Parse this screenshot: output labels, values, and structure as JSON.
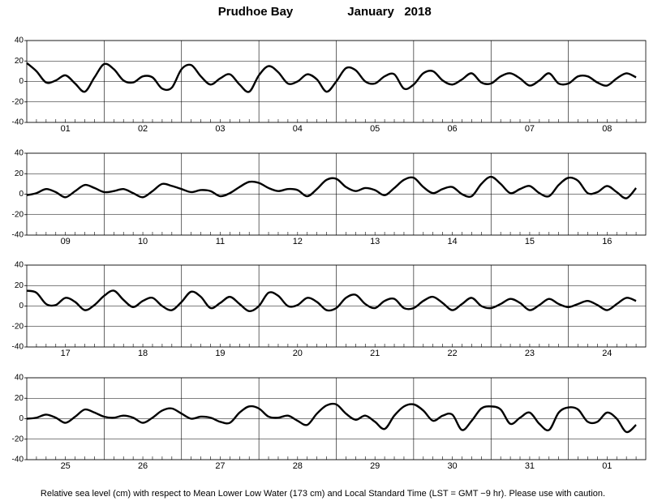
{
  "title": "Prudhoe Bay",
  "date": "January   2018",
  "footnote": "Relative sea level (cm) with respect to Mean Lower Low Water (173 cm) and Local Standard Time (LST = GMT −9 hr). Please use with caution.",
  "chart_data": [
    {
      "type": "line",
      "color": "#000000",
      "ylim": [
        -40,
        40
      ],
      "yticks": [
        -40,
        -20,
        0,
        20,
        40
      ],
      "grid": true,
      "categories": [
        "01",
        "02",
        "03",
        "04",
        "05",
        "06",
        "07",
        "08"
      ],
      "values": [
        [
          18,
          10,
          -1,
          1,
          6,
          -2,
          -10,
          4
        ],
        [
          17,
          12,
          1,
          -1,
          5,
          4,
          -7,
          -6
        ],
        [
          12,
          16,
          5,
          -3,
          3,
          7,
          -3,
          -10
        ],
        [
          6,
          15,
          9,
          -2,
          0,
          7,
          2,
          -10
        ],
        [
          0,
          13,
          11,
          0,
          -2,
          5,
          7,
          -7
        ],
        [
          -3,
          8,
          10,
          1,
          -3,
          2,
          8,
          -1
        ],
        [
          -2,
          5,
          8,
          3,
          -4,
          1,
          8,
          -2
        ],
        [
          -2,
          5,
          5,
          -1,
          -4,
          3,
          8,
          4
        ]
      ]
    },
    {
      "type": "line",
      "color": "#000000",
      "ylim": [
        -40,
        40
      ],
      "yticks": [
        -40,
        -20,
        0,
        20,
        40
      ],
      "grid": true,
      "categories": [
        "09",
        "10",
        "11",
        "12",
        "13",
        "14",
        "15",
        "16"
      ],
      "values": [
        [
          -1,
          1,
          5,
          2,
          -3,
          3,
          9,
          6
        ],
        [
          2,
          3,
          5,
          1,
          -3,
          3,
          10,
          8
        ],
        [
          5,
          2,
          4,
          3,
          -2,
          1,
          7,
          12
        ],
        [
          11,
          6,
          3,
          5,
          4,
          -2,
          5,
          14
        ],
        [
          15,
          7,
          3,
          6,
          4,
          -1,
          6,
          14
        ],
        [
          16,
          7,
          1,
          5,
          7,
          0,
          -2,
          10
        ],
        [
          17,
          10,
          1,
          5,
          8,
          1,
          -2,
          9
        ],
        [
          16,
          13,
          1,
          2,
          8,
          2,
          -4,
          6
        ]
      ]
    },
    {
      "type": "line",
      "color": "#000000",
      "ylim": [
        -40,
        40
      ],
      "yticks": [
        -40,
        -20,
        0,
        20,
        40
      ],
      "grid": true,
      "categories": [
        "17",
        "18",
        "19",
        "20",
        "21",
        "22",
        "23",
        "24"
      ],
      "values": [
        [
          15,
          13,
          2,
          1,
          8,
          4,
          -4,
          1
        ],
        [
          10,
          15,
          6,
          -1,
          5,
          8,
          0,
          -4
        ],
        [
          4,
          14,
          9,
          -2,
          3,
          9,
          2,
          -5
        ],
        [
          0,
          13,
          10,
          0,
          1,
          8,
          4,
          -4
        ],
        [
          -2,
          8,
          11,
          2,
          -2,
          5,
          7,
          -2
        ],
        [
          -2,
          5,
          9,
          3,
          -4,
          2,
          8,
          0
        ],
        [
          -2,
          2,
          7,
          3,
          -4,
          1,
          7,
          2
        ],
        [
          -1,
          2,
          5,
          1,
          -4,
          2,
          8,
          5
        ]
      ]
    },
    {
      "type": "line",
      "color": "#000000",
      "ylim": [
        -40,
        40
      ],
      "yticks": [
        -40,
        -20,
        0,
        20,
        40
      ],
      "grid": true,
      "categories": [
        "25",
        "26",
        "27",
        "28",
        "29",
        "30",
        "31",
        "01"
      ],
      "values": [
        [
          0,
          1,
          4,
          1,
          -4,
          2,
          9,
          6
        ],
        [
          2,
          1,
          3,
          1,
          -4,
          1,
          8,
          10
        ],
        [
          5,
          0,
          2,
          1,
          -3,
          -4,
          6,
          12
        ],
        [
          10,
          2,
          1,
          3,
          -2,
          -6,
          5,
          13
        ],
        [
          14,
          5,
          -1,
          3,
          -3,
          -10,
          3,
          12
        ],
        [
          14,
          8,
          -2,
          3,
          4,
          -11,
          -2,
          10
        ],
        [
          12,
          9,
          -5,
          1,
          6,
          -5,
          -11,
          6
        ],
        [
          11,
          9,
          -3,
          -3,
          6,
          0,
          -13,
          -6
        ]
      ]
    }
  ]
}
